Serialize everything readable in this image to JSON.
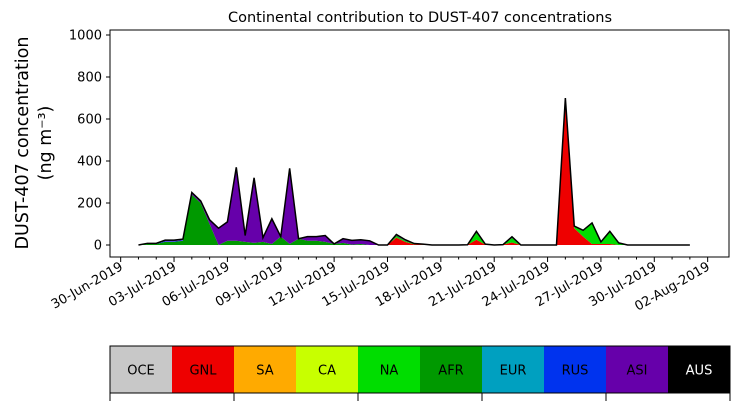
{
  "chart_data": {
    "type": "area",
    "stacked": true,
    "title": "Continental contribution to DUST-407 concentrations",
    "ylabel_line1": "DUST-407 concentration",
    "ylabel_line2": "(ng m⁻³)",
    "ylim": [
      0,
      1000
    ],
    "yticks": [
      0,
      200,
      400,
      600,
      800,
      1000
    ],
    "x_dates": [
      "2019-07-01",
      "2019-07-01.5",
      "2019-07-02",
      "2019-07-02.5",
      "2019-07-03",
      "2019-07-03.5",
      "2019-07-04",
      "2019-07-04.5",
      "2019-07-05",
      "2019-07-05.5",
      "2019-07-06",
      "2019-07-06.5",
      "2019-07-07",
      "2019-07-07.5",
      "2019-07-08",
      "2019-07-08.5",
      "2019-07-09",
      "2019-07-09.5",
      "2019-07-10",
      "2019-07-10.5",
      "2019-07-11",
      "2019-07-11.5",
      "2019-07-12",
      "2019-07-12.5",
      "2019-07-13",
      "2019-07-13.5",
      "2019-07-14",
      "2019-07-14.5",
      "2019-07-15",
      "2019-07-15.5",
      "2019-07-16",
      "2019-07-16.5",
      "2019-07-17",
      "2019-07-17.5",
      "2019-07-18",
      "2019-07-18.5",
      "2019-07-19",
      "2019-07-19.5",
      "2019-07-20",
      "2019-07-20.5",
      "2019-07-21",
      "2019-07-21.5",
      "2019-07-22",
      "2019-07-22.5",
      "2019-07-23",
      "2019-07-23.5",
      "2019-07-24",
      "2019-07-24.5",
      "2019-07-25",
      "2019-07-25.5",
      "2019-07-26",
      "2019-07-26.5",
      "2019-07-27",
      "2019-07-27.5",
      "2019-07-28",
      "2019-07-28.5",
      "2019-07-29",
      "2019-07-29.5",
      "2019-07-30",
      "2019-07-30.5",
      "2019-07-31",
      "2019-07-31.5",
      "2019-08-01"
    ],
    "xtick_labels": [
      "30-Jun-2019",
      "03-Jul-2019",
      "06-Jul-2019",
      "09-Jul-2019",
      "12-Jul-2019",
      "15-Jul-2019",
      "18-Jul-2019",
      "21-Jul-2019",
      "24-Jul-2019",
      "27-Jul-2019",
      "30-Jul-2019",
      "02-Aug-2019"
    ],
    "xtick_days": [
      -1,
      2,
      5,
      8,
      11,
      14,
      17,
      20,
      23,
      26,
      29,
      32
    ],
    "x_days_note_free": [
      0,
      0.5,
      1,
      1.5,
      2,
      2.5,
      3,
      3.5,
      4,
      4.5,
      5,
      5.5,
      6,
      6.5,
      7,
      7.5,
      8,
      8.5,
      9,
      9.5,
      10,
      10.5,
      11,
      11.5,
      12,
      12.5,
      13,
      13.5,
      14,
      14.5,
      15,
      15.5,
      16,
      16.5,
      17,
      17.5,
      18,
      18.5,
      19,
      19.5,
      20,
      20.5,
      21,
      21.5,
      22,
      22.5,
      23,
      23.5,
      24,
      24.5,
      25,
      25.5,
      26,
      26.5,
      27,
      27.5,
      28,
      28.5,
      29,
      29.5,
      30,
      30.5,
      31
    ],
    "series": [
      {
        "name": "OCE",
        "color": "#c8c8c8",
        "values": [
          0,
          0,
          0,
          0,
          0,
          0,
          0,
          0,
          0,
          0,
          0,
          0,
          0,
          0,
          0,
          0,
          0,
          0,
          0,
          0,
          0,
          0,
          0,
          0,
          0,
          0,
          0,
          0,
          0,
          0,
          0,
          0,
          0,
          0,
          0,
          0,
          0,
          0,
          0,
          0,
          0,
          0,
          0,
          0,
          0,
          0,
          0,
          0,
          0,
          0,
          0,
          0,
          0,
          0,
          0,
          0,
          0,
          0,
          0,
          0,
          0,
          0,
          0
        ]
      },
      {
        "name": "GNL",
        "color": "#ee0000",
        "values": [
          0,
          0,
          0,
          0,
          0,
          0,
          0,
          0,
          0,
          0,
          0,
          0,
          0,
          0,
          0,
          0,
          0,
          0,
          0,
          0,
          0,
          0,
          0,
          0,
          0,
          0,
          0,
          0,
          0,
          35,
          15,
          3,
          2,
          0,
          0,
          0,
          0,
          1,
          25,
          2,
          0,
          2,
          12,
          0,
          0,
          0,
          0,
          0,
          690,
          80,
          40,
          5,
          5,
          5,
          0,
          0,
          0,
          0,
          0,
          0,
          0,
          0,
          0
        ]
      },
      {
        "name": "SA",
        "color": "#ffaa00",
        "values": [
          0,
          0,
          0,
          0,
          0,
          0,
          0,
          0,
          0,
          0,
          0,
          0,
          0,
          0,
          0,
          0,
          0,
          0,
          0,
          0,
          0,
          0,
          0,
          0,
          0,
          0,
          0,
          0,
          0,
          0,
          0,
          0,
          0,
          0,
          0,
          0,
          0,
          0,
          0,
          0,
          0,
          0,
          0,
          0,
          0,
          0,
          0,
          0,
          0,
          0,
          0,
          0,
          0,
          0,
          0,
          0,
          0,
          0,
          0,
          0,
          0,
          0,
          0
        ]
      },
      {
        "name": "CA",
        "color": "#c8ff00",
        "values": [
          0,
          0,
          0,
          0,
          0,
          0,
          0,
          0,
          0,
          0,
          0,
          0,
          0,
          0,
          0,
          0,
          0,
          0,
          0,
          0,
          0,
          0,
          0,
          0,
          0,
          0,
          0,
          0,
          0,
          0,
          0,
          0,
          0,
          0,
          0,
          0,
          0,
          0,
          0,
          0,
          0,
          0,
          0,
          0,
          0,
          0,
          0,
          0,
          0,
          0,
          0,
          0,
          0,
          0,
          0,
          0,
          0,
          0,
          0,
          0,
          0,
          0,
          0
        ]
      },
      {
        "name": "NA",
        "color": "#00dd00",
        "values": [
          0,
          0,
          0,
          0,
          0,
          0,
          0,
          0,
          0,
          0,
          0,
          0,
          0,
          0,
          0,
          0,
          0,
          0,
          0,
          0,
          0,
          0,
          0,
          0,
          0,
          0,
          0,
          0,
          0,
          5,
          5,
          2,
          2,
          0,
          0,
          0,
          0,
          0,
          30,
          2,
          0,
          0,
          20,
          0,
          0,
          0,
          0,
          0,
          10,
          10,
          30,
          100,
          10,
          60,
          10,
          0,
          0,
          0,
          0,
          0,
          0,
          0,
          0
        ]
      },
      {
        "name": "AFR",
        "color": "#009900",
        "values": [
          0,
          5,
          5,
          15,
          15,
          20,
          240,
          200,
          100,
          0,
          20,
          20,
          15,
          10,
          15,
          5,
          40,
          5,
          30,
          20,
          20,
          15,
          5,
          10,
          2,
          5,
          0,
          0,
          0,
          5,
          0,
          0,
          0,
          0,
          0,
          0,
          0,
          0,
          5,
          0,
          0,
          0,
          2,
          0,
          0,
          0,
          0,
          0,
          0,
          0,
          0,
          0,
          0,
          0,
          0,
          0,
          0,
          0,
          0,
          0,
          0,
          0,
          0
        ]
      },
      {
        "name": "EUR",
        "color": "#00a0c0",
        "values": [
          0,
          0,
          0,
          0,
          0,
          0,
          0,
          0,
          0,
          0,
          0,
          0,
          0,
          0,
          0,
          0,
          0,
          0,
          0,
          0,
          0,
          0,
          0,
          0,
          0,
          0,
          0,
          0,
          0,
          0,
          0,
          0,
          0,
          0,
          0,
          0,
          0,
          0,
          0,
          0,
          0,
          0,
          0,
          0,
          0,
          0,
          0,
          0,
          0,
          0,
          0,
          0,
          0,
          0,
          0,
          0,
          0,
          0,
          0,
          0,
          0,
          0,
          0
        ]
      },
      {
        "name": "RUS",
        "color": "#0033ee",
        "values": [
          0,
          3,
          3,
          3,
          3,
          3,
          0,
          0,
          0,
          0,
          0,
          0,
          0,
          0,
          0,
          0,
          0,
          0,
          0,
          0,
          0,
          0,
          0,
          0,
          0,
          0,
          0,
          0,
          0,
          0,
          0,
          0,
          0,
          0,
          0,
          0,
          0,
          0,
          0,
          0,
          0,
          0,
          0,
          0,
          0,
          0,
          0,
          0,
          0,
          0,
          0,
          0,
          0,
          0,
          0,
          0,
          0,
          0,
          0,
          0,
          0,
          0,
          0
        ]
      },
      {
        "name": "ASI",
        "color": "#6600aa",
        "values": [
          0,
          0,
          0,
          5,
          5,
          5,
          10,
          10,
          20,
          80,
          90,
          350,
          30,
          310,
          20,
          120,
          0,
          360,
          0,
          20,
          20,
          30,
          0,
          20,
          20,
          20,
          20,
          0,
          0,
          5,
          5,
          2,
          0,
          0,
          0,
          0,
          0,
          0,
          5,
          0,
          0,
          0,
          5,
          0,
          0,
          0,
          0,
          0,
          0,
          0,
          0,
          0,
          0,
          0,
          0,
          0,
          0,
          0,
          0,
          0,
          0,
          0,
          0
        ]
      },
      {
        "name": "AUS",
        "color": "#000000",
        "values": [
          0,
          0,
          0,
          0,
          0,
          0,
          0,
          0,
          0,
          0,
          0,
          0,
          0,
          0,
          0,
          0,
          0,
          0,
          0,
          0,
          0,
          0,
          0,
          0,
          0,
          0,
          0,
          0,
          0,
          0,
          0,
          0,
          0,
          0,
          0,
          0,
          0,
          0,
          0,
          0,
          0,
          0,
          0,
          0,
          0,
          0,
          0,
          0,
          0,
          0,
          0,
          0,
          0,
          0,
          0,
          0,
          0,
          0,
          0,
          0,
          0,
          0,
          0
        ]
      }
    ],
    "legend": {
      "placement": "bottom",
      "entries": [
        {
          "label": "OCE",
          "color": "#c8c8c8",
          "text_color": "#000000"
        },
        {
          "label": "GNL",
          "color": "#ee0000",
          "text_color": "#000000"
        },
        {
          "label": "SA",
          "color": "#ffaa00",
          "text_color": "#000000"
        },
        {
          "label": "CA",
          "color": "#c8ff00",
          "text_color": "#000000"
        },
        {
          "label": "NA",
          "color": "#00dd00",
          "text_color": "#000000"
        },
        {
          "label": "AFR",
          "color": "#009900",
          "text_color": "#000000"
        },
        {
          "label": "EUR",
          "color": "#00a0c0",
          "text_color": "#000000"
        },
        {
          "label": "RUS",
          "color": "#0033ee",
          "text_color": "#000000"
        },
        {
          "label": "ASI",
          "color": "#6600aa",
          "text_color": "#000000"
        },
        {
          "label": "AUS",
          "color": "#000000",
          "text_color": "#ffffff"
        }
      ]
    }
  }
}
